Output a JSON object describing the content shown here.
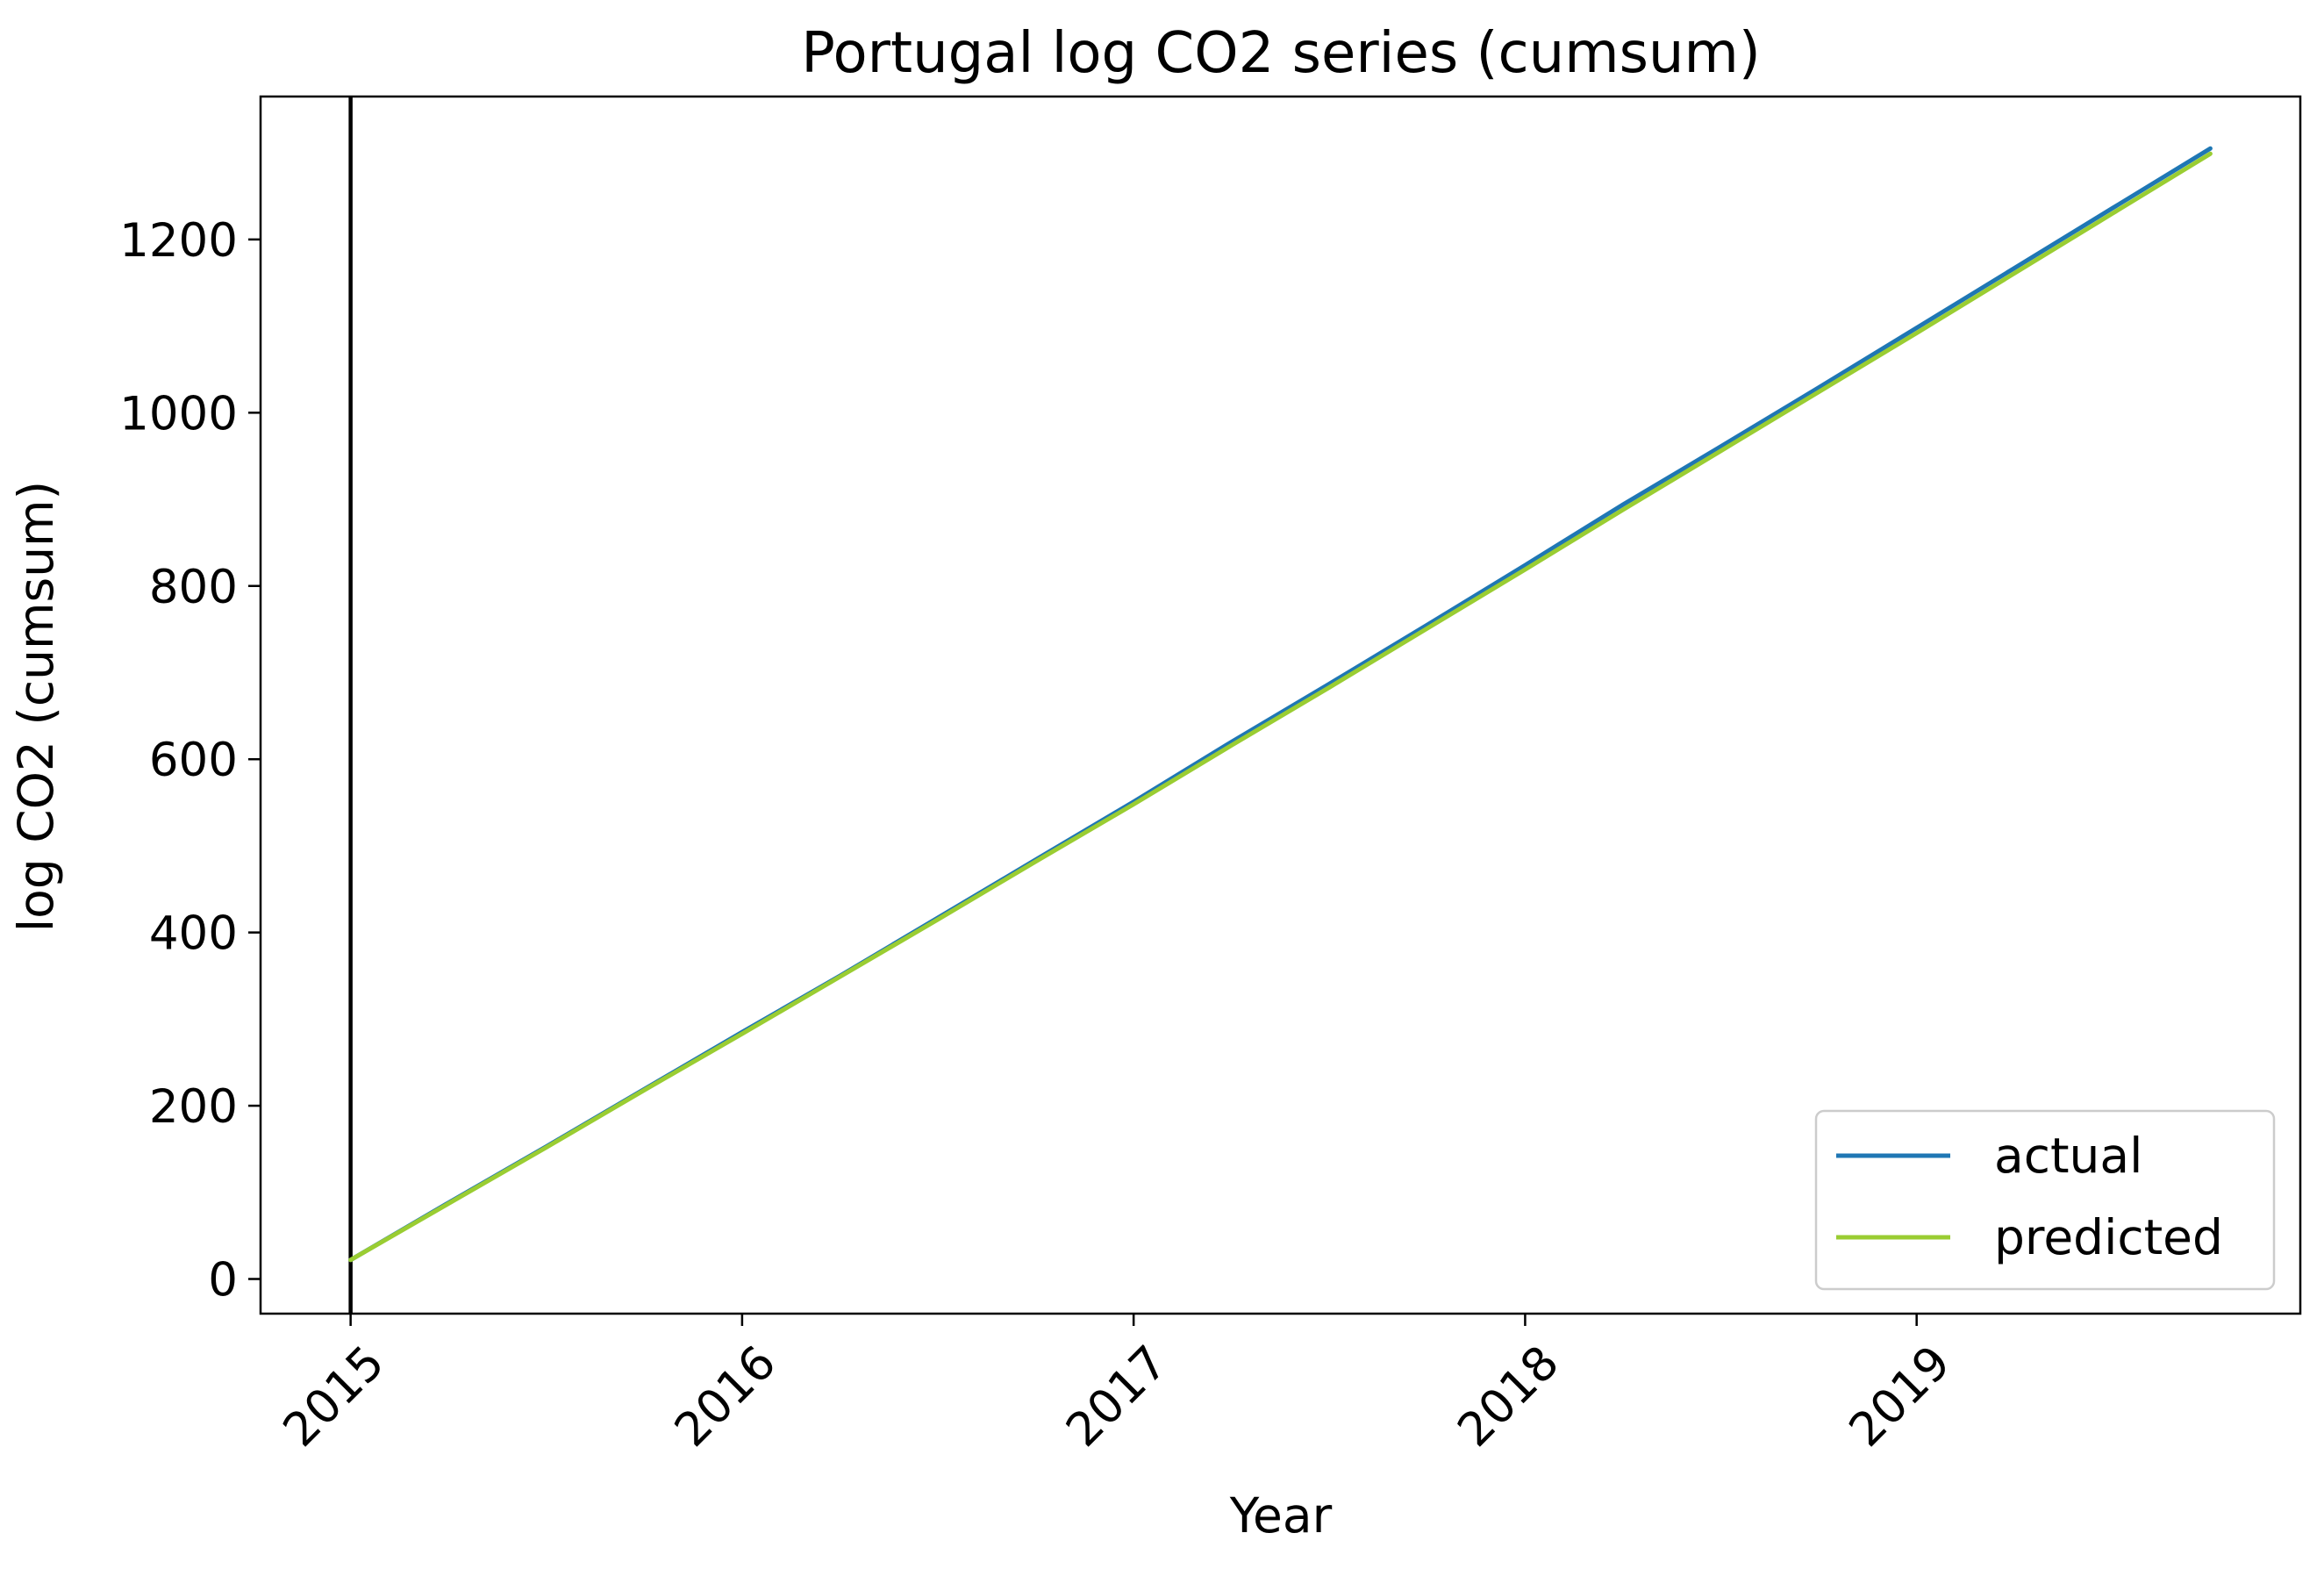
{
  "chart_data": {
    "type": "line",
    "title": "Portugal log CO2 series (cumsum)",
    "xlabel": "Year",
    "ylabel": "log CO2 (cumsum)",
    "xlim": [
      2014.77,
      2019.98
    ],
    "ylim": [
      -40,
      1365
    ],
    "x_ticks": [
      2015,
      2016,
      2017,
      2018,
      2019
    ],
    "x_tick_labels": [
      "2015",
      "2016",
      "2017",
      "2018",
      "2019"
    ],
    "y_ticks": [
      0,
      200,
      400,
      600,
      800,
      1000,
      1200
    ],
    "y_tick_labels": [
      "0",
      "200",
      "400",
      "600",
      "800",
      "1000",
      "1200"
    ],
    "vertical_line_x": 2015.0,
    "grid": false,
    "legend_position": "lower right",
    "series": [
      {
        "name": "actual",
        "color": "#1f77b4",
        "x": [
          2015.0,
          2015.25,
          2015.5,
          2015.75,
          2016.0,
          2016.25,
          2016.5,
          2016.75,
          2017.0,
          2017.25,
          2017.5,
          2017.75,
          2018.0,
          2018.25,
          2018.5,
          2018.75,
          2019.0,
          2019.25,
          2019.5,
          2019.75
        ],
        "values": [
          22,
          88,
          153,
          219,
          285,
          350,
          417,
          484,
          551,
          620,
          687,
          755,
          824,
          894,
          961,
          1029,
          1098,
          1167,
          1236,
          1305
        ]
      },
      {
        "name": "predicted",
        "color": "#9acd32",
        "x": [
          2015.0,
          2015.25,
          2015.5,
          2015.75,
          2016.0,
          2016.25,
          2016.5,
          2016.75,
          2017.0,
          2017.25,
          2017.5,
          2017.75,
          2018.0,
          2018.25,
          2018.5,
          2018.75,
          2019.0,
          2019.25,
          2019.5,
          2019.75
        ],
        "values": [
          22,
          87,
          152,
          218,
          283,
          349,
          415,
          482,
          548,
          616,
          683,
          751,
          819,
          888,
          956,
          1024,
          1092,
          1161,
          1230,
          1299
        ]
      }
    ]
  }
}
